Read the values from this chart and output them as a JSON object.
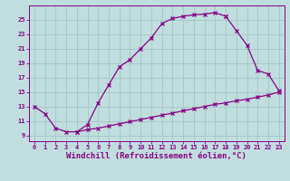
{
  "background_color": "#c0dede",
  "grid_color": "#a0c0c0",
  "line_color": "#880088",
  "xlabel": "Windchill (Refroidissement éolien,°C)",
  "xlabel_fontsize": 6.5,
  "ytick_vals": [
    9,
    11,
    13,
    15,
    17,
    19,
    21,
    23,
    25
  ],
  "xtick_vals": [
    0,
    1,
    2,
    3,
    4,
    5,
    6,
    7,
    8,
    9,
    10,
    11,
    12,
    13,
    14,
    15,
    16,
    17,
    18,
    19,
    20,
    21,
    22,
    23
  ],
  "xlim": [
    -0.5,
    23.5
  ],
  "ylim": [
    8.2,
    27.0
  ],
  "curve1_x": [
    0,
    1,
    2,
    3,
    4,
    5,
    6,
    7,
    8,
    9,
    10,
    11,
    12,
    13,
    14,
    15,
    16,
    17,
    18
  ],
  "curve1_y": [
    13.0,
    12.0,
    10.0,
    9.5,
    9.5,
    10.5,
    13.5,
    16.0,
    18.5,
    19.5,
    21.0,
    22.5,
    24.5,
    25.2,
    25.5,
    25.7,
    25.8,
    26.0,
    25.5
  ],
  "curve2_x": [
    18,
    19,
    20,
    21,
    22,
    23
  ],
  "curve2_y": [
    25.5,
    23.5,
    21.5,
    18.0,
    17.5,
    15.2
  ],
  "curve3_x": [
    4,
    5,
    6,
    7,
    8,
    9,
    10,
    11,
    12,
    13,
    14,
    15,
    16,
    17,
    18,
    19,
    20,
    21,
    22,
    23
  ],
  "curve3_y": [
    9.5,
    9.8,
    10.0,
    10.3,
    10.6,
    10.9,
    11.2,
    11.5,
    11.8,
    12.1,
    12.4,
    12.7,
    13.0,
    13.3,
    13.5,
    13.8,
    14.0,
    14.3,
    14.6,
    15.0
  ]
}
